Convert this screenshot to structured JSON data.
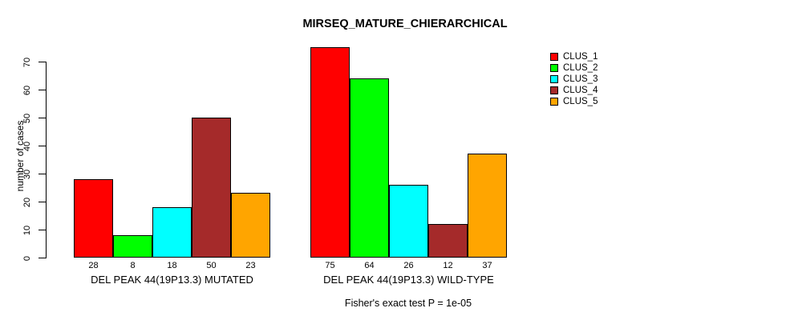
{
  "chart_data": {
    "type": "bar",
    "title": "MIRSEQ_MATURE_CHIERARCHICAL",
    "ylabel": "number of cases",
    "xlabel": "",
    "ylim": [
      0,
      75
    ],
    "yticks": [
      0,
      10,
      20,
      30,
      40,
      50,
      60,
      70
    ],
    "grid": false,
    "legend_position": "top-right",
    "categories": [
      "DEL PEAK 44(19P13.3) MUTATED",
      "DEL PEAK 44(19P13.3) WILD-TYPE"
    ],
    "series": [
      {
        "name": "CLUS_1",
        "color": "#FF0000",
        "values": [
          28,
          75
        ]
      },
      {
        "name": "CLUS_2",
        "color": "#00FF00",
        "values": [
          8,
          64
        ]
      },
      {
        "name": "CLUS_3",
        "color": "#00FFFF",
        "values": [
          18,
          26
        ]
      },
      {
        "name": "CLUS_4",
        "color": "#A52A2A",
        "values": [
          50,
          12
        ]
      },
      {
        "name": "CLUS_5",
        "color": "#FFA500",
        "values": [
          23,
          37
        ]
      }
    ],
    "bar_value_labels": [
      [
        28,
        8,
        18,
        50,
        23
      ],
      [
        75,
        64,
        26,
        12,
        37
      ]
    ],
    "annotation": "Fisher's exact test P = 1e-05",
    "background": "#FFFFFF",
    "bar_border_color": "#000000"
  }
}
